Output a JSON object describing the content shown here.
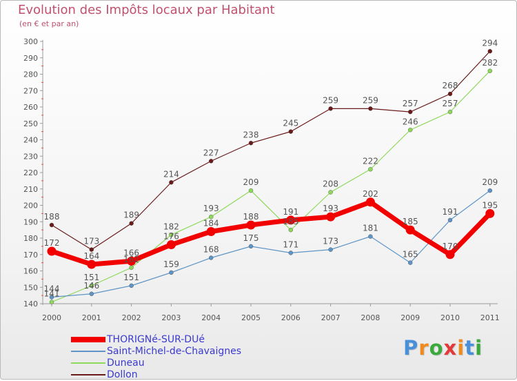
{
  "header": {
    "title": "Evolution des Impôts locaux par Habitant",
    "subtitle": "(en € et par an)"
  },
  "chart_data": {
    "type": "line",
    "title": "Evolution des Impôts locaux par Habitant",
    "subtitle": "(en € et par an)",
    "xlabel": "",
    "ylabel": "",
    "x": [
      "2000",
      "2001",
      "2002",
      "2003",
      "2004",
      "2005",
      "2006",
      "2007",
      "2008",
      "2009",
      "2010",
      "2011"
    ],
    "ylim": [
      140,
      300
    ],
    "yticks": [
      140,
      150,
      160,
      170,
      180,
      190,
      200,
      210,
      220,
      230,
      240,
      250,
      260,
      270,
      280,
      290,
      300
    ],
    "grid": false,
    "legend_position": "bottom-left",
    "series": [
      {
        "name": "Dollon",
        "color": "#6b1a1a",
        "stroke": 1.2,
        "values": [
          188,
          173,
          189,
          214,
          227,
          238,
          245,
          259,
          259,
          257,
          268,
          294
        ]
      },
      {
        "name": "Duneau",
        "color": "#8ed85a",
        "stroke": 1.2,
        "values": [
          141,
          151,
          162,
          182,
          193,
          209,
          185,
          208,
          222,
          246,
          257,
          282
        ]
      },
      {
        "name": "Saint-Michel-de-Chavaignes",
        "color": "#5f95c6",
        "stroke": 1.2,
        "values": [
          144,
          146,
          151,
          159,
          168,
          175,
          171,
          173,
          181,
          165,
          191,
          209
        ]
      },
      {
        "name": "THORIGNé-SUR-DUé",
        "color": "#f20000",
        "stroke": 7,
        "values": [
          172,
          164,
          166,
          176,
          184,
          188,
          191,
          193,
          202,
          185,
          170,
          195
        ]
      }
    ],
    "legend_order": [
      "THORIGNé-SUR-DUé",
      "Saint-Michel-de-Chavaignes",
      "Duneau",
      "Dollon"
    ]
  },
  "logo": {
    "text": "Proxiti",
    "letters": [
      "P",
      "r",
      "o",
      "x",
      "i",
      "t",
      "i"
    ],
    "colors": [
      "#4a90d9",
      "#f08a1c",
      "#3aa83a",
      "#e23a3a",
      "#f08a1c",
      "#4a90d9",
      "#3aa83a"
    ]
  }
}
